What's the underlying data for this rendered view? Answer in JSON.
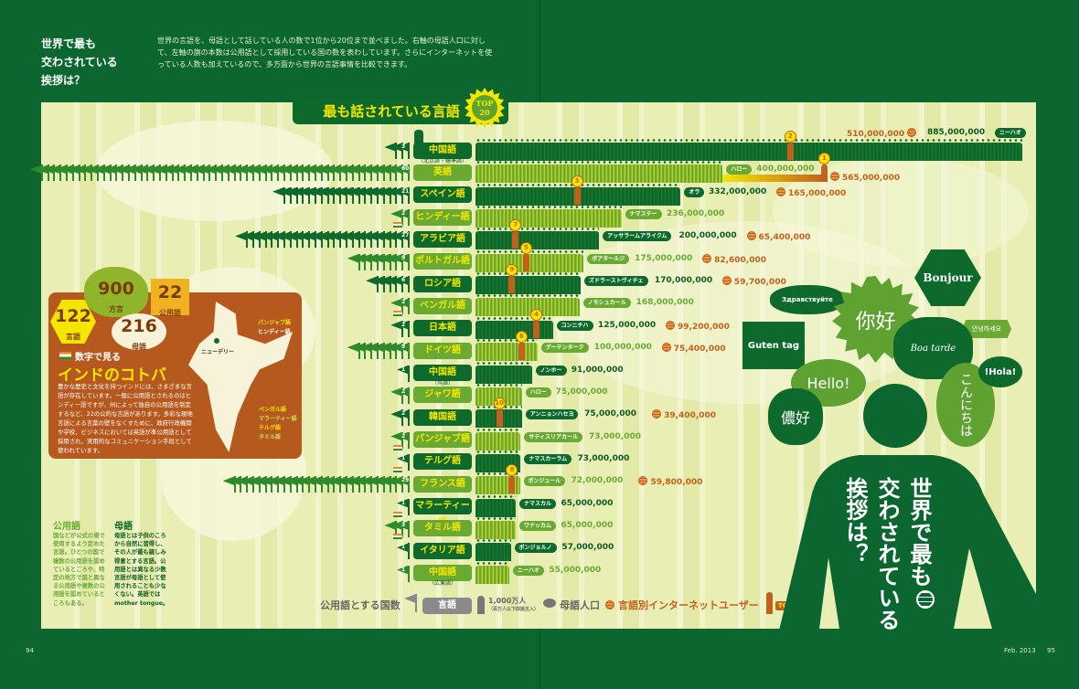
{
  "header": {
    "title_lines": [
      "世界で最も",
      "交わされている",
      "挨拶は？"
    ],
    "description": "世界の言語を、母語として話している人の数で1位から20位まで並べました。右軸の母語人口に対して、左軸の旗の本数は公用語として採用している国の数を表わしています。さらにインターネットを使っている人数も加えているので、多方面から世界の言語事情を比較できます。"
  },
  "banner": {
    "title": "最も話されている言語",
    "badge_line1": "TOP",
    "badge_line2": "20"
  },
  "colors": {
    "background": "#0b6630",
    "dark_row": "#0d6a2c",
    "light_row": "#6aaa33",
    "label_text": "#f5e600",
    "internet": "#c2611c",
    "india_panel": "#b5591f"
  },
  "chart_data": {
    "type": "bar",
    "title": "最も話されている言語",
    "series_description": [
      "母語人口",
      "公用語とする国数",
      "言語別インターネットユーザー"
    ],
    "rows": [
      {
        "name": "中国語",
        "sub": "（北京語・標準語）",
        "style": "dark",
        "countries": 3,
        "greeting": "ニーハオ",
        "speakers": "885,000,000",
        "speakers_value": 885000000,
        "internet": "510,000,000",
        "internet_value": 510000000,
        "internet_rank": 2,
        "india": false
      },
      {
        "name": "英語",
        "sub": "",
        "style": "light",
        "countries": 60,
        "greeting": "ハロー",
        "speakers": "400,000,000",
        "speakers_value": 400000000,
        "internet": "565,000,000",
        "internet_value": 565000000,
        "internet_rank": 1,
        "india": false
      },
      {
        "name": "スペイン語",
        "sub": "",
        "style": "dark",
        "countries": 21,
        "greeting": "オラ",
        "speakers": "332,000,000",
        "speakers_value": 332000000,
        "internet": "165,000,000",
        "internet_value": 165000000,
        "internet_rank": 3,
        "india": false
      },
      {
        "name": "ヒンディー語",
        "sub": "",
        "style": "light",
        "countries": 2,
        "greeting": "ナマステー",
        "speakers": "236,000,000",
        "speakers_value": 236000000,
        "india": true
      },
      {
        "name": "アラビア語",
        "sub": "",
        "style": "dark",
        "countries": 27,
        "greeting": "アッサラームアライクム",
        "speakers": "200,000,000",
        "speakers_value": 200000000,
        "internet": "65,400,000",
        "internet_value": 65400000,
        "internet_rank": 7,
        "india": false
      },
      {
        "name": "ポルトガル語",
        "sub": "",
        "style": "light",
        "countries": 9,
        "greeting": "ボアタールジ",
        "speakers": "175,000,000",
        "speakers_value": 175000000,
        "internet": "82,600,000",
        "internet_value": 82600000,
        "internet_rank": 5,
        "india": false
      },
      {
        "name": "ロシア語",
        "sub": "",
        "style": "dark",
        "countries": 6,
        "greeting": "ズドラーストヴィチェ",
        "speakers": "170,000,000",
        "speakers_value": 170000000,
        "internet": "59,700,000",
        "internet_value": 59700000,
        "internet_rank": 9,
        "india": false
      },
      {
        "name": "ベンガル語",
        "sub": "",
        "style": "light",
        "countries": 2,
        "greeting": "ノモシュカール",
        "speakers": "168,000,000",
        "speakers_value": 168000000,
        "india": true
      },
      {
        "name": "日本語",
        "sub": "",
        "style": "dark",
        "countries": 2,
        "greeting": "コンニチハ",
        "speakers": "125,000,000",
        "speakers_value": 125000000,
        "internet": "99,200,000",
        "internet_value": 99200000,
        "internet_rank": 4,
        "india": false
      },
      {
        "name": "ドイツ語",
        "sub": "",
        "style": "light",
        "countries": 9,
        "greeting": "グーテンターク",
        "speakers": "100,000,000",
        "speakers_value": 100000000,
        "internet": "75,400,000",
        "internet_value": 75400000,
        "internet_rank": 6,
        "india": false
      },
      {
        "name": "中国語",
        "sub": "（呉語）",
        "style": "dark",
        "countries": 1,
        "greeting": "ノンホー",
        "speakers": "91,000,000",
        "speakers_value": 91000000,
        "india": false
      },
      {
        "name": "ジャワ語",
        "sub": "",
        "style": "light",
        "countries": 2,
        "greeting": "ハロー",
        "speakers": "75,000,000",
        "speakers_value": 75000000,
        "india": false
      },
      {
        "name": "韓国語",
        "sub": "",
        "style": "dark",
        "countries": 2,
        "greeting": "アンニョンハセヨ",
        "speakers": "75,000,000",
        "speakers_value": 75000000,
        "internet": "39,400,000",
        "internet_value": 39400000,
        "internet_rank": 10,
        "india": false
      },
      {
        "name": "パンジャブ語",
        "sub": "",
        "style": "light",
        "countries": 2,
        "greeting": "サティスリアカール",
        "speakers": "73,000,000",
        "speakers_value": 73000000,
        "india": true
      },
      {
        "name": "テルグ語",
        "sub": "",
        "style": "dark",
        "countries": 1,
        "greeting": "ナマスカーラム",
        "speakers": "73,000,000",
        "speakers_value": 73000000,
        "india": true
      },
      {
        "name": "フランス語",
        "sub": "",
        "style": "light",
        "countries": 29,
        "greeting": "ボンジュール",
        "speakers": "72,000,000",
        "speakers_value": 72000000,
        "internet": "59,800,000",
        "internet_value": 59800000,
        "internet_rank": 8,
        "india": false
      },
      {
        "name": "マラーティー語",
        "sub": "",
        "style": "dark",
        "countries": 1,
        "greeting": "ナマスカル",
        "speakers": "65,000,000",
        "speakers_value": 65000000,
        "india": true
      },
      {
        "name": "タミル語",
        "sub": "",
        "style": "light",
        "countries": 3,
        "greeting": "ワナッカム",
        "speakers": "65,000,000",
        "speakers_value": 65000000,
        "india": true
      },
      {
        "name": "イタリア語",
        "sub": "",
        "style": "dark",
        "countries": 1,
        "greeting": "ボンジョルノ",
        "speakers": "57,000,000",
        "speakers_value": 57000000,
        "india": false
      },
      {
        "name": "中国語",
        "sub": "（広東語）",
        "style": "light",
        "countries": 1,
        "greeting": "ニーハオ",
        "speakers": "55,000,000",
        "speakers_value": 55000000,
        "india": false
      }
    ]
  },
  "india_panel": {
    "stats": [
      {
        "value": "122",
        "label": "言語"
      },
      {
        "value": "900",
        "label": "方言"
      },
      {
        "value": "22",
        "label": "公用語"
      },
      {
        "value": "216",
        "label": "母語"
      }
    ],
    "subtitle": "数字で見る",
    "title": "インドのコトバ",
    "body": "豊かな歴史と文化を持つインドには、さまざまな言語が存在しています。一般に公用語とされるのはヒンディー語ですが、州によって独自の公用語を制定するなど、22の公的な言語があります。多彩な現地言語による言葉の壁をなくすために、政府行政機関や学校、ビジネスにおいては英語が準公用語として採用され、実用的なコミュニケーション手段として使われています。",
    "map_labels": [
      "パンジャブ語",
      "ヒンディー語",
      "ニューデリー",
      "ベンガル語",
      "マラーティー語",
      "テルグ語",
      "タミル語"
    ]
  },
  "definitions": {
    "official": {
      "title": "公用語",
      "body": "国などが公式の場で使用するよう定めた言語。ひとつの国で複数の公用語を認めているところや、特定の地方で国と異なる公用語や複数の公用語を認めているところもある。"
    },
    "native": {
      "title": "母語",
      "body": "母語とは子供のころから自然に習得し、その人が最も親しみ得意とする言語。公用語とは異なる少数言語が母語として使用されることも少なくない。英語では mother tongue。"
    }
  },
  "legend": {
    "countries": "公用語とする国数",
    "countries_flag": "1",
    "language": "言語",
    "person_unit": "1,000万人",
    "person_note": "（百万人以下四捨五入）",
    "native": "母語人口",
    "internet": "言語別インターネットユーザー",
    "internet_badge": "TOP10"
  },
  "greetings": [
    "Здравствуйте",
    "你好",
    "Bonjour",
    "안녕하세요",
    "Boa tarde",
    "Guten tag",
    "Hello!",
    "儂好",
    "こんにちは",
    "!Hola!"
  ],
  "poster_title": [
    "世界で最も",
    "交わされている",
    "挨拶は？"
  ],
  "footer": {
    "left_page": "94",
    "issue": "Feb. 2013",
    "right_page": "95"
  }
}
